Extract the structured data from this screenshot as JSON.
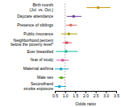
{
  "chart_data": {
    "type": "forest",
    "categories": [
      "Birth month\n(Jul. vs. Oct.)",
      "Daycare attendance",
      "Presence of siblings",
      "Public insurance",
      "Neighborhood percent\nbelow the poverty level*",
      "Ever breastfed",
      "Year of study",
      "Maternal asthma",
      "Male sex",
      "Secondhand\nsmoke exposure"
    ],
    "values": [
      2.62,
      1.42,
      1.28,
      1.18,
      1.08,
      1.05,
      0.88,
      0.8,
      0.82,
      0.72
    ],
    "ci_low": [
      2.05,
      1.08,
      1.04,
      0.82,
      0.88,
      0.55,
      0.58,
      0.48,
      0.68,
      0.42
    ],
    "ci_high": [
      3.22,
      1.8,
      1.58,
      1.6,
      1.32,
      1.62,
      1.18,
      1.18,
      0.98,
      1.05
    ],
    "colors": [
      "#c8960a",
      "#7040a0",
      "#d86858",
      "#a89a10",
      "#d84050",
      "#10b890",
      "#d050a0",
      "#10a8c0",
      "#50a800",
      "#10a8c8"
    ],
    "null_x": 1.0,
    "xlabel": "Odds ratio",
    "xlim": [
      0.5,
      3.5
    ],
    "xticks": [
      0.5,
      {
        "value": 1,
        "label": "1.0"
      },
      1.5,
      {
        "value": 2,
        "label": "2.0"
      },
      2.5,
      {
        "value": 3,
        "label": "3.0"
      },
      3.5
    ],
    "grid": false
  }
}
